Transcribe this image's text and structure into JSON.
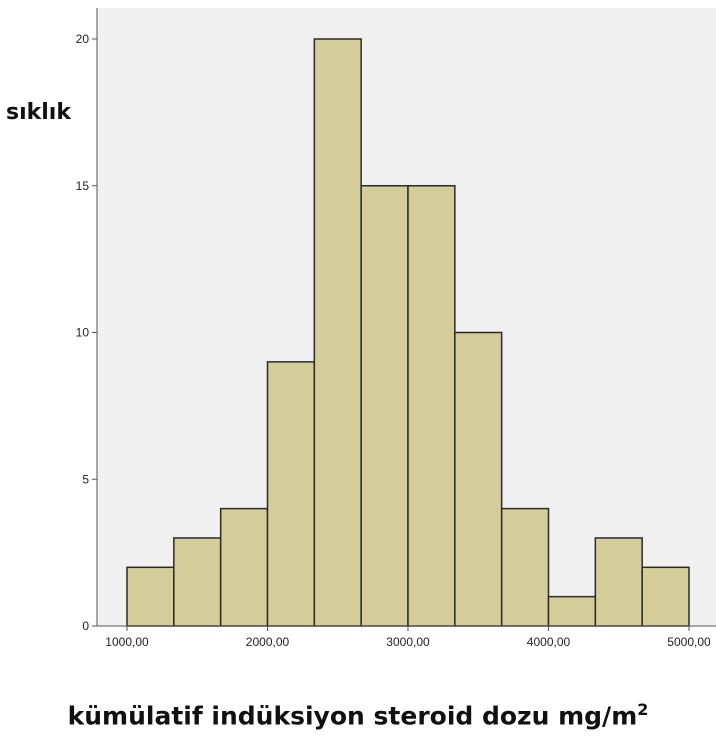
{
  "chart_data": {
    "type": "bar",
    "subtype": "histogram",
    "ylabel": "sıklık",
    "xlabel": "kümülatif indüksiyon steroid dozu mg/m",
    "xlabel_superscript": "2",
    "bin_edges": [
      1000,
      1333.33,
      1666.67,
      2000,
      2333.33,
      2666.67,
      3000,
      3333.33,
      3666.67,
      4000,
      4333.33,
      4666.67,
      5000
    ],
    "values": [
      2,
      3,
      4,
      9,
      20,
      15,
      15,
      10,
      4,
      1,
      3,
      2
    ],
    "xlim": [
      1000,
      5000
    ],
    "ylim": [
      0,
      20
    ],
    "x_ticks": [
      {
        "value": 1000,
        "label": "1000,00"
      },
      {
        "value": 2000,
        "label": "2000,00"
      },
      {
        "value": 3000,
        "label": "3000,00"
      },
      {
        "value": 4000,
        "label": "4000,00"
      },
      {
        "value": 5000,
        "label": "5000,00"
      }
    ],
    "y_ticks": [
      {
        "value": 0,
        "label": "0"
      },
      {
        "value": 5,
        "label": "5"
      },
      {
        "value": 10,
        "label": "10"
      },
      {
        "value": 15,
        "label": "15"
      },
      {
        "value": 20,
        "label": "20"
      }
    ],
    "grid": false,
    "colors": {
      "bar_fill": "#d4cc99",
      "bar_stroke": "#2b2b2b",
      "plot_background": "#f0f0f0",
      "axis": "#555555"
    }
  }
}
